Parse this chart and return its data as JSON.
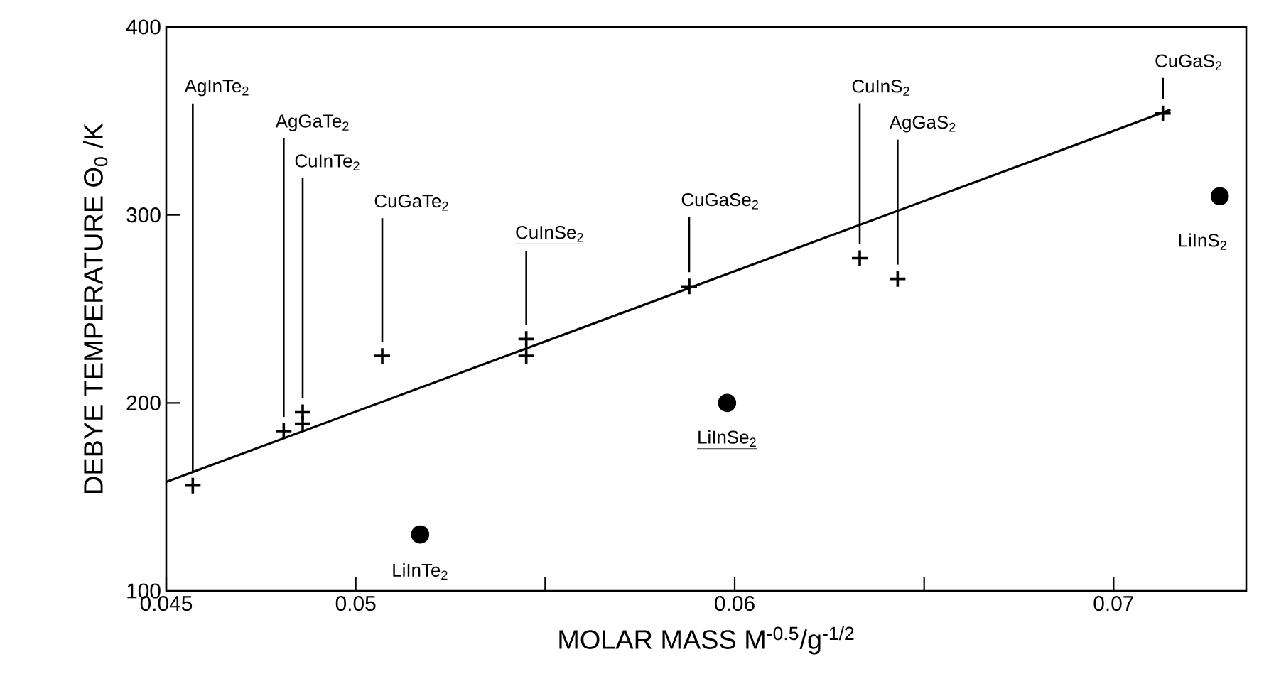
{
  "chart_data": {
    "type": "scatter",
    "xlabel": "MOLAR MASS M$^{-0.5}$/g$^{-1/2}$",
    "ylabel": "DEBYE TEMPERATURE Θ$_{0}$ /K",
    "xlim": [
      0.045,
      0.0735
    ],
    "ylim": [
      100,
      400
    ],
    "xticks": [
      0.045,
      0.05,
      {
        "value": 0.055,
        "label": null
      },
      0.06,
      {
        "value": 0.065,
        "label": null
      },
      0.07
    ],
    "yticks": [
      100,
      200,
      300,
      400
    ],
    "grid": false,
    "series": [
      {
        "marker": "cross",
        "color": "#000000",
        "x": [
          0.0457,
          0.0481,
          0.0486,
          0.0486,
          0.0507,
          0.0545,
          0.0545,
          0.0588,
          0.0633,
          0.0643,
          0.0713
        ],
        "values": [
          156,
          185,
          195,
          189,
          225,
          234,
          225,
          262,
          277,
          266,
          354
        ]
      },
      {
        "marker": "circle",
        "color": "#000000",
        "x": [
          0.0517,
          0.0598,
          0.0728
        ],
        "values": [
          130,
          200,
          310
        ]
      },
      {
        "type": "line",
        "marker": "none",
        "color": "#000000",
        "x": [
          0.045,
          0.0715
        ],
        "values": [
          158,
          356
        ]
      }
    ],
    "annotations": [
      "AgInTe$_{2}$",
      "AgGaTe$_{2}$",
      "CuInTe$_{2}$",
      "CuGaTe$_{2}$",
      "CuInSe$_{2}$",
      "CuGaSe$_{2}$",
      "CuInS$_{2}$",
      "AgGaS$_{2}$",
      "CuGaS$_{2}$",
      "LiInTe$_{2}$",
      "LiInSe$_{2}$",
      "LiInS$_{2}$"
    ]
  }
}
